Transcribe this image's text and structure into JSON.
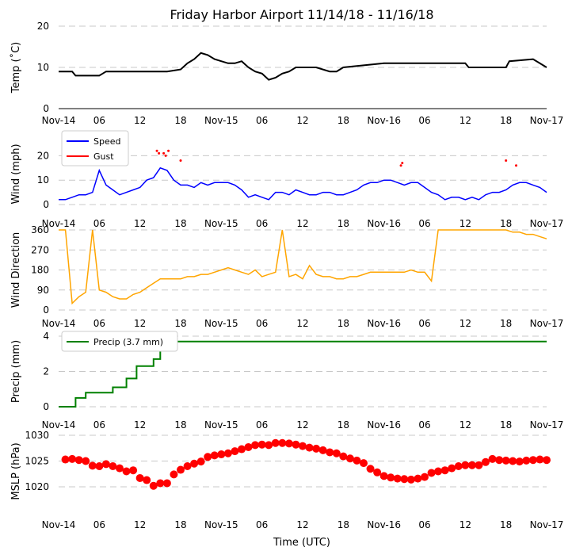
{
  "title": "Friday Harbor Airport 11/14/18 - 11/16/18",
  "xlabel": "Time (UTC)",
  "x_ticks": [
    "Nov-14",
    "06",
    "12",
    "18",
    "Nov-15",
    "06",
    "12",
    "18",
    "Nov-16",
    "06",
    "12",
    "18",
    "Nov-17"
  ],
  "chart_data": [
    {
      "type": "line",
      "ylabel": "Temp ($^\\circ$C)",
      "ylabel_display": "Temp (˚C)",
      "ylim": [
        0,
        20
      ],
      "y_ticks": [
        "0",
        "10",
        "20"
      ],
      "grid": true,
      "x_unit": "hours since Nov-14 00 UTC",
      "series": [
        {
          "color": "#000000",
          "x": [
            0,
            2,
            2.5,
            6,
            7,
            10,
            14,
            16,
            18,
            19,
            20,
            21,
            22,
            23,
            24,
            25,
            26,
            27,
            28,
            29,
            30,
            31,
            32,
            33,
            34,
            35,
            36,
            38,
            40,
            41,
            42,
            48,
            54,
            56,
            60,
            60.5,
            66,
            66.5,
            70,
            72
          ],
          "y": [
            9,
            9,
            8,
            8,
            9,
            9,
            9,
            9,
            9.5,
            11,
            12,
            13.5,
            13,
            12,
            11.5,
            11,
            11,
            11.5,
            10,
            9,
            8.5,
            7,
            7.5,
            8.5,
            9,
            10,
            10,
            10,
            9,
            9,
            10,
            11,
            11,
            11,
            11,
            10,
            10,
            11.5,
            12,
            10
          ]
        }
      ]
    },
    {
      "type": "line",
      "ylabel": "Wind (mph)",
      "ylim": [
        0,
        25
      ],
      "y_ticks": [
        "0",
        "10",
        "20"
      ],
      "grid": true,
      "legend": "top-left",
      "series": [
        {
          "name": "Speed",
          "color": "#0000ff",
          "x": [
            0,
            1,
            2,
            3,
            4,
            5,
            6,
            7,
            8,
            9,
            10,
            11,
            12,
            13,
            14,
            15,
            16,
            17,
            18,
            19,
            20,
            21,
            22,
            23,
            24,
            25,
            26,
            27,
            28,
            29,
            30,
            31,
            32,
            33,
            34,
            35,
            36,
            37,
            38,
            39,
            40,
            41,
            42,
            43,
            44,
            45,
            46,
            47,
            48,
            49,
            50,
            51,
            52,
            53,
            54,
            55,
            56,
            57,
            58,
            59,
            60,
            61,
            62,
            63,
            64,
            65,
            66,
            67,
            68,
            69,
            70,
            71,
            72
          ],
          "y": [
            2,
            2,
            3,
            4,
            4,
            5,
            14,
            8,
            6,
            4,
            5,
            6,
            7,
            10,
            11,
            15,
            14,
            10,
            8,
            8,
            7,
            9,
            8,
            9,
            9,
            9,
            8,
            6,
            3,
            4,
            3,
            2,
            5,
            5,
            4,
            6,
            5,
            4,
            4,
            5,
            5,
            4,
            4,
            5,
            6,
            8,
            9,
            9,
            10,
            10,
            9,
            8,
            9,
            9,
            7,
            5,
            4,
            2,
            3,
            3,
            2,
            3,
            2,
            4,
            5,
            5,
            6,
            8,
            9,
            9,
            8,
            7,
            5
          ]
        },
        {
          "name": "Gust",
          "color": "#ff0000",
          "x": [
            14.5,
            14.8,
            15.5,
            15.8,
            16.2,
            18,
            50.5,
            50.7,
            66,
            67.5
          ],
          "y": [
            22,
            21,
            21,
            20,
            22,
            18,
            16,
            17,
            18,
            16
          ]
        }
      ]
    },
    {
      "type": "line",
      "ylabel": "Wind Direction",
      "ylim": [
        0,
        360
      ],
      "y_ticks": [
        "0",
        "90",
        "180",
        "270",
        "360"
      ],
      "grid": true,
      "series": [
        {
          "color": "#ffa500",
          "x": [
            0,
            1,
            2,
            3,
            4,
            5,
            6,
            7,
            8,
            9,
            10,
            11,
            12,
            13,
            14,
            15,
            16,
            17,
            18,
            19,
            20,
            21,
            22,
            23,
            24,
            25,
            26,
            27,
            28,
            29,
            30,
            31,
            32,
            33,
            34,
            35,
            36,
            37,
            38,
            39,
            40,
            41,
            42,
            43,
            44,
            45,
            46,
            47,
            48,
            49,
            50,
            51,
            52,
            53,
            54,
            55,
            56,
            57,
            58,
            59,
            60,
            61,
            62,
            63,
            64,
            65,
            66,
            67,
            68,
            69,
            70,
            71,
            72
          ],
          "y": [
            360,
            360,
            30,
            60,
            80,
            360,
            90,
            80,
            60,
            50,
            50,
            70,
            80,
            100,
            120,
            140,
            140,
            140,
            140,
            150,
            150,
            160,
            160,
            170,
            180,
            190,
            180,
            170,
            160,
            180,
            150,
            160,
            170,
            360,
            150,
            160,
            140,
            200,
            160,
            150,
            150,
            140,
            140,
            150,
            150,
            160,
            170,
            170,
            170,
            170,
            170,
            170,
            180,
            170,
            170,
            130,
            360,
            360,
            360,
            360,
            360,
            360,
            360,
            360,
            360,
            360,
            360,
            350,
            350,
            340,
            340,
            330,
            320
          ]
        }
      ]
    },
    {
      "type": "line",
      "ylabel": "Precip (mm)",
      "ylim": [
        0,
        4
      ],
      "y_ticks": [
        "0",
        "2",
        "4"
      ],
      "grid": true,
      "legend": "top-left",
      "series": [
        {
          "name": "Precip (3.7 mm)",
          "color": "#008000",
          "x": [
            0,
            2.5,
            2.5,
            4,
            4,
            8,
            8,
            10,
            10,
            11.5,
            11.5,
            14,
            14,
            15,
            15,
            15.5,
            15.5,
            72
          ],
          "y": [
            0,
            0,
            0.5,
            0.5,
            0.8,
            0.8,
            1.1,
            1.1,
            1.6,
            1.6,
            2.3,
            2.3,
            2.7,
            2.7,
            3.2,
            3.2,
            3.7,
            3.7
          ]
        }
      ]
    },
    {
      "type": "scatter",
      "ylabel": "MSLP (hPa)",
      "ylim": [
        1016,
        1030
      ],
      "y_ticks": [
        "1020",
        "1025",
        "1030"
      ],
      "grid": true,
      "series": [
        {
          "color": "#ff0000",
          "x": [
            1,
            2,
            3,
            4,
            5,
            6,
            7,
            8,
            9,
            10,
            11,
            12,
            13,
            14,
            15,
            16,
            17,
            18,
            19,
            20,
            21,
            22,
            23,
            24,
            25,
            26,
            27,
            28,
            29,
            30,
            31,
            32,
            33,
            34,
            35,
            36,
            37,
            38,
            39,
            40,
            41,
            42,
            43,
            44,
            45,
            46,
            47,
            48,
            49,
            50,
            51,
            52,
            53,
            54,
            55,
            56,
            57,
            58,
            59,
            60,
            61,
            62,
            63,
            64,
            65,
            66,
            67,
            68,
            69,
            70,
            71,
            72
          ],
          "y": [
            1025.3,
            1025.4,
            1025.2,
            1025,
            1024.1,
            1024,
            1024.4,
            1024,
            1023.6,
            1023,
            1023.2,
            1021.7,
            1021.3,
            1020.2,
            1020.7,
            1020.7,
            1022.4,
            1023.3,
            1024,
            1024.5,
            1024.9,
            1025.8,
            1026.1,
            1026.3,
            1026.5,
            1026.9,
            1027.3,
            1027.7,
            1028.1,
            1028.2,
            1028.1,
            1028.5,
            1028.5,
            1028.4,
            1028.2,
            1027.9,
            1027.6,
            1027.4,
            1027.1,
            1026.7,
            1026.5,
            1025.9,
            1025.5,
            1025.1,
            1024.6,
            1023.5,
            1022.8,
            1022.1,
            1021.8,
            1021.6,
            1021.5,
            1021.4,
            1021.6,
            1021.9,
            1022.7,
            1023.0,
            1023.2,
            1023.6,
            1024.0,
            1024.2,
            1024.2,
            1024.2,
            1024.8,
            1025.4,
            1025.2,
            1025.1,
            1025.0,
            1024.9,
            1025.1,
            1025.2,
            1025.3,
            1025.2
          ]
        }
      ]
    }
  ]
}
